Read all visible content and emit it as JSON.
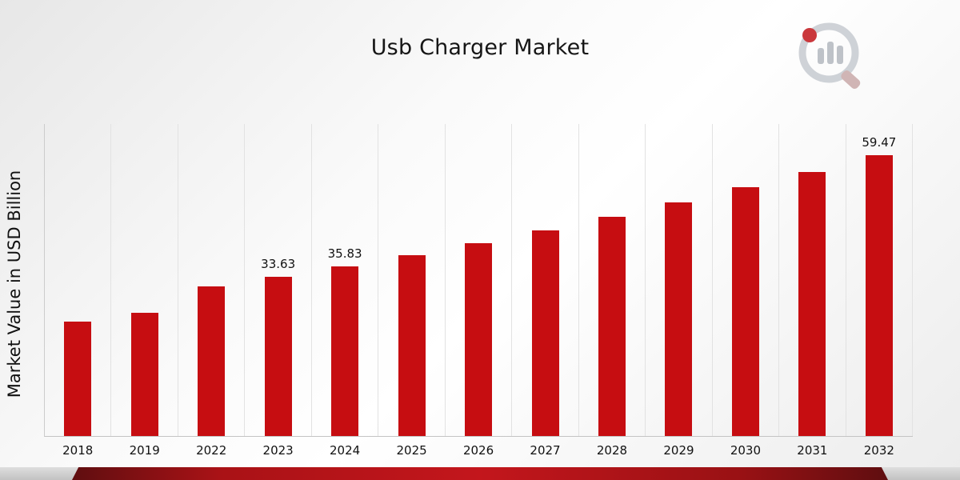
{
  "page": {
    "title": "Usb Charger Market"
  },
  "chart_data": {
    "type": "bar",
    "title": "Usb Charger Market",
    "xlabel": "",
    "ylabel": "Market Value in USD Billion",
    "categories": [
      "2018",
      "2019",
      "2022",
      "2023",
      "2024",
      "2025",
      "2026",
      "2027",
      "2028",
      "2029",
      "2030",
      "2031",
      "2032"
    ],
    "values": [
      24.2,
      26.0,
      31.6,
      33.63,
      35.83,
      38.3,
      40.8,
      43.5,
      46.4,
      49.4,
      52.6,
      55.9,
      59.47
    ],
    "data_labels": {
      "2023": "33.63",
      "2024": "35.83",
      "2032": "59.47"
    },
    "ylim": [
      0,
      66
    ],
    "grid": "vertical-only",
    "legend": "none",
    "bar_color": "#c60d11"
  },
  "colors": {
    "bar": "#c60d11",
    "ribbon_dark": "#5f0e10",
    "ribbon_red": "#c3161c",
    "gridline": "#e2e2e2"
  },
  "logo": {
    "icon": "bar-chart-magnifier-logo"
  }
}
